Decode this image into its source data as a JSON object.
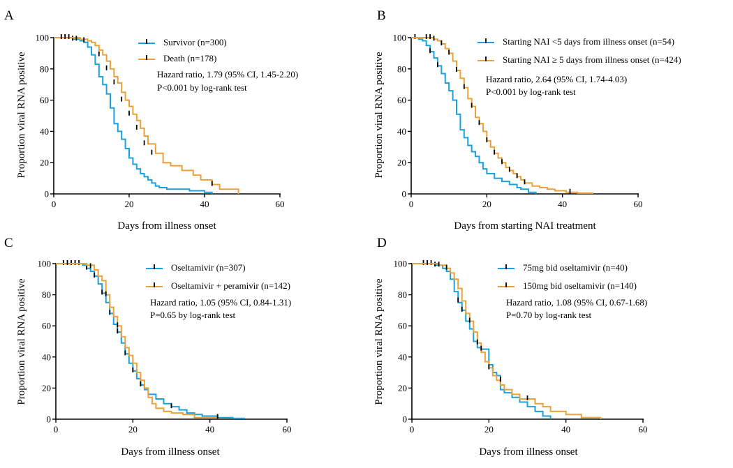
{
  "colors": {
    "blue": "#1ba1dc",
    "orange": "#eba13a",
    "axis": "#000000"
  },
  "chart_data": [
    {
      "type": "line",
      "subtype": "kaplan-meier",
      "letter": "A",
      "xlabel": "Days from illness onset",
      "ylabel": "Proportion viral RNA positive",
      "xlim": [
        0,
        60
      ],
      "ylim": [
        0,
        100
      ],
      "xticks": [
        "0",
        "20",
        "40",
        "60"
      ],
      "yticks": [
        "0",
        "20",
        "40",
        "60",
        "80",
        "100"
      ],
      "stat_lines": [
        "Hazard ratio, 1.79 (95% CI, 1.45-2.20)",
        "P<0.001 by log-rank test"
      ],
      "series": [
        {
          "name": "Survivor (n=300)",
          "color": "blue",
          "x": [
            0,
            5,
            7,
            8,
            9,
            10,
            11,
            12,
            13,
            14,
            15,
            16,
            17,
            18,
            19,
            20,
            21,
            22,
            23,
            24,
            25,
            26,
            27,
            28,
            30,
            33,
            36,
            40,
            42
          ],
          "y": [
            100,
            99,
            98,
            97,
            94,
            89,
            83,
            75,
            70,
            64,
            55,
            45,
            40,
            35,
            29,
            23,
            19,
            16,
            13,
            11,
            9,
            7,
            5,
            4,
            3,
            3,
            2,
            1,
            0
          ],
          "censors": [
            [
              3,
              100
            ],
            [
              5,
              99
            ]
          ]
        },
        {
          "name": "Death  (n=178)",
          "color": "orange",
          "x": [
            0,
            7,
            9,
            10,
            11,
            12,
            13,
            14,
            15,
            16,
            17,
            18,
            19,
            20,
            21,
            22,
            23,
            24,
            25,
            27,
            29,
            31,
            34,
            37,
            39,
            42,
            44,
            49
          ],
          "y": [
            100,
            99,
            98,
            97,
            95,
            92,
            89,
            85,
            80,
            75,
            71,
            65,
            60,
            56,
            51,
            47,
            42,
            37,
            32,
            26,
            20,
            18,
            15,
            12,
            9,
            6,
            3,
            0
          ],
          "censors": [
            [
              2,
              100
            ],
            [
              3,
              100
            ],
            [
              4,
              100
            ],
            [
              6,
              99
            ],
            [
              8,
              98
            ],
            [
              12,
              89
            ],
            [
              14,
              80
            ],
            [
              16,
              71
            ],
            [
              18,
              60
            ],
            [
              20,
              51
            ],
            [
              22,
              42
            ],
            [
              24,
              32
            ],
            [
              26,
              26
            ],
            [
              42,
              6
            ]
          ]
        }
      ],
      "legend_placement": "top-center"
    },
    {
      "type": "line",
      "subtype": "kaplan-meier",
      "letter": "B",
      "xlabel": "Days from starting NAI treatment",
      "ylabel": "Proportion viral RNA positive",
      "xlim": [
        0,
        60
      ],
      "ylim": [
        0,
        100
      ],
      "xticks": [
        "0",
        "20",
        "40",
        "60"
      ],
      "yticks": [
        "0",
        "20",
        "40",
        "60",
        "80",
        "100"
      ],
      "stat_lines": [
        "Hazard ratio, 2.64 (95% CI, 1.74-4.03)",
        "P<0.001 by log-rank test"
      ],
      "series": [
        {
          "name": "Starting NAI <5 days from illness onset (n=54)",
          "color": "blue",
          "x": [
            0,
            2,
            3,
            4,
            5,
            6,
            7,
            8,
            9,
            10,
            11,
            12,
            13,
            14,
            15,
            16,
            17,
            18,
            19,
            20,
            22,
            24,
            26,
            28,
            29,
            31,
            33
          ],
          "y": [
            100,
            99,
            98,
            95,
            91,
            87,
            82,
            77,
            71,
            66,
            60,
            51,
            41,
            36,
            31,
            27,
            24,
            20,
            16,
            13,
            10,
            8,
            6,
            4,
            3,
            1,
            0
          ],
          "censors": [
            [
              1,
              100
            ],
            [
              5,
              91
            ],
            [
              7,
              82
            ]
          ]
        },
        {
          "name": "Starting NAI ≥ 5 days from illness onset (n=424)",
          "color": "orange",
          "x": [
            0,
            6,
            7,
            8,
            9,
            10,
            11,
            12,
            13,
            14,
            15,
            16,
            17,
            18,
            19,
            20,
            21,
            22,
            23,
            24,
            25,
            26,
            27,
            28,
            29,
            30,
            32,
            34,
            36,
            38,
            41,
            44,
            48
          ],
          "y": [
            100,
            99,
            98,
            96,
            93,
            90,
            85,
            79,
            74,
            68,
            61,
            56,
            49,
            45,
            40,
            34,
            30,
            26,
            23,
            20,
            17,
            15,
            13,
            11,
            9,
            7,
            5,
            4,
            3,
            2,
            1,
            0.5,
            0
          ],
          "censors": [
            [
              4,
              100
            ],
            [
              5,
              100
            ],
            [
              6,
              99
            ],
            [
              8,
              96
            ],
            [
              10,
              90
            ],
            [
              12,
              79
            ],
            [
              14,
              68
            ],
            [
              16,
              56
            ],
            [
              18,
              45
            ],
            [
              20,
              34
            ],
            [
              22,
              26
            ],
            [
              24,
              20
            ],
            [
              26,
              15
            ],
            [
              28,
              11
            ],
            [
              30,
              7
            ],
            [
              42,
              1
            ]
          ]
        }
      ],
      "legend_placement": "top-center"
    },
    {
      "type": "line",
      "subtype": "kaplan-meier",
      "letter": "C",
      "xlabel": "Days from illness onset",
      "ylabel": "Proportion viral RNA positive",
      "xlim": [
        0,
        60
      ],
      "ylim": [
        0,
        100
      ],
      "xticks": [
        "0",
        "20",
        "40",
        "60"
      ],
      "yticks": [
        "0",
        "20",
        "40",
        "60",
        "80",
        "100"
      ],
      "stat_lines": [
        "Hazard ratio, 1.05 (95% CI, 0.84-1.31)",
        "P=0.65 by log-rank test"
      ],
      "series": [
        {
          "name": "Oseltamivir (n=307)",
          "color": "blue",
          "x": [
            0,
            7,
            8,
            9,
            10,
            11,
            12,
            13,
            14,
            15,
            16,
            17,
            18,
            19,
            20,
            21,
            22,
            23,
            24,
            26,
            28,
            30,
            32,
            34,
            36,
            38,
            42,
            46,
            49
          ],
          "y": [
            100,
            99,
            97,
            95,
            92,
            87,
            81,
            75,
            68,
            61,
            56,
            49,
            42,
            36,
            31,
            26,
            22,
            19,
            16,
            13,
            10,
            8,
            6,
            4,
            3,
            2,
            1,
            0.5,
            0
          ],
          "censors": [
            [
              2,
              100
            ],
            [
              4,
              100
            ],
            [
              5,
              100
            ],
            [
              6,
              100
            ],
            [
              8,
              97
            ],
            [
              10,
              92
            ],
            [
              12,
              81
            ],
            [
              14,
              68
            ],
            [
              16,
              56
            ],
            [
              18,
              42
            ],
            [
              20,
              31
            ],
            [
              22,
              22
            ],
            [
              24,
              16
            ],
            [
              30,
              8
            ],
            [
              42,
              1
            ]
          ]
        },
        {
          "name": "Oseltamivir + peramivir (n=142)",
          "color": "orange",
          "x": [
            0,
            8,
            10,
            11,
            12,
            13,
            14,
            15,
            16,
            17,
            18,
            19,
            20,
            21,
            22,
            23,
            24,
            25,
            26,
            28,
            30,
            33,
            36,
            42
          ],
          "y": [
            100,
            99,
            96,
            92,
            89,
            80,
            72,
            66,
            60,
            53,
            46,
            41,
            36,
            30,
            25,
            20,
            14,
            10,
            7,
            5,
            4,
            3,
            1,
            0
          ],
          "censors": [
            [
              3,
              100
            ],
            [
              9,
              98
            ],
            [
              13,
              80
            ],
            [
              16,
              60
            ],
            [
              42,
              1
            ]
          ]
        }
      ],
      "legend_placement": "top-center"
    },
    {
      "type": "line",
      "subtype": "kaplan-meier",
      "letter": "D",
      "xlabel": "Days from illness onset",
      "ylabel": "Proportion viral RNA positive",
      "xlim": [
        0,
        60
      ],
      "ylim": [
        0,
        100
      ],
      "xticks": [
        "0",
        "20",
        "40",
        "60"
      ],
      "yticks": [
        "0",
        "20",
        "40",
        "60",
        "80",
        "100"
      ],
      "stat_lines": [
        "Hazard ratio, 1.08 (95% CI, 0.67-1.68)",
        "P=0.70 by log-rank test"
      ],
      "series": [
        {
          "name": "75mg bid oseltamivir (n=40)",
          "color": "blue",
          "x": [
            0,
            6,
            8,
            9,
            10,
            11,
            12,
            13,
            14,
            15,
            16,
            17,
            18,
            20,
            21,
            22,
            23,
            24,
            26,
            28,
            30,
            32,
            34,
            36
          ],
          "y": [
            100,
            99,
            97,
            95,
            90,
            82,
            75,
            70,
            63,
            58,
            50,
            46,
            45,
            35,
            30,
            28,
            19,
            17,
            14,
            11,
            8,
            5,
            2,
            0
          ],
          "censors": [
            [
              3,
              100
            ],
            [
              5,
              100
            ],
            [
              6,
              99
            ]
          ]
        },
        {
          "name": "150mg bid oseltamivir (n=140)",
          "color": "orange",
          "x": [
            0,
            7,
            9,
            10,
            11,
            12,
            13,
            14,
            15,
            16,
            17,
            18,
            19,
            20,
            21,
            22,
            23,
            24,
            26,
            28,
            30,
            32,
            34,
            36,
            40,
            44,
            49
          ],
          "y": [
            100,
            99,
            97,
            94,
            90,
            84,
            76,
            68,
            63,
            56,
            49,
            43,
            37,
            33,
            28,
            25,
            22,
            19,
            16,
            13,
            13,
            10,
            8,
            5,
            3,
            1,
            0
          ],
          "censors": [
            [
              4,
              100
            ],
            [
              7,
              99
            ],
            [
              9,
              97
            ],
            [
              12,
              76
            ],
            [
              13,
              70
            ],
            [
              15,
              63
            ],
            [
              17,
              49
            ],
            [
              18,
              45
            ],
            [
              20,
              33
            ],
            [
              23,
              25
            ],
            [
              30,
              13
            ]
          ]
        }
      ],
      "legend_placement": "top-center"
    }
  ]
}
